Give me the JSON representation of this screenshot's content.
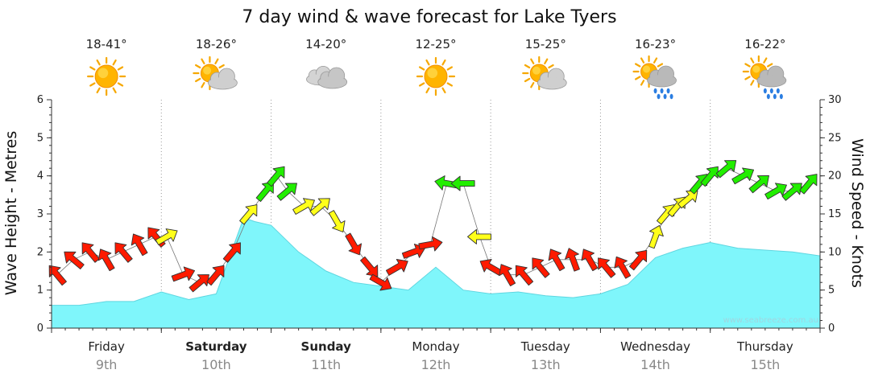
{
  "chart_data": {
    "type": "area",
    "title": "7 day wind & wave forecast for Lake Tyers",
    "ylabel_left": "Wave Height - Metres",
    "ylabel_right": "Wind Speed - Knots",
    "ylim_left": [
      0,
      6
    ],
    "ylim_right": [
      0,
      30
    ],
    "yticks_left": [
      "0",
      "1",
      "2",
      "3",
      "4",
      "5",
      "6"
    ],
    "yticks_right": [
      "0",
      "5",
      "10",
      "15",
      "20",
      "25",
      "30"
    ],
    "grid": "dotted vertical at day boundaries",
    "days": [
      {
        "name": "Friday",
        "date": "9th",
        "temp": "18-41°",
        "icon": "sunny-icon",
        "weekend": false
      },
      {
        "name": "Saturday",
        "date": "10th",
        "temp": "18-26°",
        "icon": "partly-cloudy-icon",
        "weekend": true
      },
      {
        "name": "Sunday",
        "date": "11th",
        "temp": "14-20°",
        "icon": "cloudy-icon",
        "weekend": true
      },
      {
        "name": "Monday",
        "date": "12th",
        "temp": "12-25°",
        "icon": "sunny-icon",
        "weekend": false
      },
      {
        "name": "Tuesday",
        "date": "13th",
        "temp": "15-25°",
        "icon": "partly-cloudy-icon",
        "weekend": false
      },
      {
        "name": "Wednesday",
        "date": "14th",
        "temp": "16-23°",
        "icon": "rain-icon",
        "weekend": false
      },
      {
        "name": "Thursday",
        "date": "15th",
        "temp": "16-22°",
        "icon": "rain-icon",
        "weekend": false
      }
    ],
    "wave_series": {
      "name": "Wave Height",
      "unit": "m",
      "color": "#7ff6fb",
      "x_days": [
        0,
        0.25,
        0.5,
        0.75,
        1.0,
        1.25,
        1.5,
        1.75,
        1.85,
        2.0,
        2.25,
        2.5,
        2.75,
        3.0,
        3.25,
        3.5,
        3.75,
        4.0,
        4.25,
        4.5,
        4.75,
        5.0,
        5.25,
        5.5,
        5.75,
        6.0,
        6.25,
        6.5,
        6.75,
        7.0
      ],
      "values": [
        0.6,
        0.6,
        0.7,
        0.7,
        0.95,
        0.75,
        0.9,
        2.9,
        2.8,
        2.7,
        2.0,
        1.5,
        1.2,
        1.1,
        1.0,
        1.6,
        1.0,
        0.9,
        0.95,
        0.85,
        0.8,
        0.9,
        1.15,
        1.85,
        2.1,
        2.25,
        2.1,
        2.05,
        2.0,
        1.9
      ]
    },
    "wind_series": {
      "name": "Wind Speed",
      "unit": "kt",
      "colors": {
        "light": "#ff1a00",
        "moderate": "#ffff1a",
        "strong": "#22ee00"
      },
      "points": [
        {
          "t": 0.05,
          "kt": 7,
          "dir": 320,
          "band": "light"
        },
        {
          "t": 0.2,
          "kt": 9,
          "dir": 310,
          "band": "light"
        },
        {
          "t": 0.35,
          "kt": 10,
          "dir": 320,
          "band": "light"
        },
        {
          "t": 0.5,
          "kt": 9,
          "dir": 330,
          "band": "light"
        },
        {
          "t": 0.65,
          "kt": 10,
          "dir": 320,
          "band": "light"
        },
        {
          "t": 0.8,
          "kt": 11,
          "dir": 330,
          "band": "light"
        },
        {
          "t": 0.95,
          "kt": 12,
          "dir": 320,
          "band": "light"
        },
        {
          "t": 1.05,
          "kt": 12,
          "dir": 60,
          "band": "moderate"
        },
        {
          "t": 1.2,
          "kt": 7,
          "dir": 70,
          "band": "light"
        },
        {
          "t": 1.35,
          "kt": 6,
          "dir": 50,
          "band": "light"
        },
        {
          "t": 1.5,
          "kt": 7,
          "dir": 40,
          "band": "light"
        },
        {
          "t": 1.65,
          "kt": 10,
          "dir": 40,
          "band": "light"
        },
        {
          "t": 1.8,
          "kt": 15,
          "dir": 40,
          "band": "moderate"
        },
        {
          "t": 1.95,
          "kt": 18,
          "dir": 40,
          "band": "strong"
        },
        {
          "t": 2.05,
          "kt": 20,
          "dir": 40,
          "band": "strong"
        },
        {
          "t": 2.15,
          "kt": 18,
          "dir": 50,
          "band": "strong"
        },
        {
          "t": 2.3,
          "kt": 16,
          "dir": 60,
          "band": "moderate"
        },
        {
          "t": 2.45,
          "kt": 16,
          "dir": 50,
          "band": "moderate"
        },
        {
          "t": 2.6,
          "kt": 14,
          "dir": 150,
          "band": "moderate"
        },
        {
          "t": 2.75,
          "kt": 11,
          "dir": 150,
          "band": "light"
        },
        {
          "t": 2.9,
          "kt": 8,
          "dir": 140,
          "band": "light"
        },
        {
          "t": 3.0,
          "kt": 6,
          "dir": 120,
          "band": "light"
        },
        {
          "t": 3.15,
          "kt": 8,
          "dir": 60,
          "band": "light"
        },
        {
          "t": 3.3,
          "kt": 10,
          "dir": 70,
          "band": "light"
        },
        {
          "t": 3.45,
          "kt": 11,
          "dir": 80,
          "band": "light"
        },
        {
          "t": 3.6,
          "kt": 19,
          "dir": 280,
          "band": "strong"
        },
        {
          "t": 3.75,
          "kt": 19,
          "dir": 270,
          "band": "strong"
        },
        {
          "t": 3.9,
          "kt": 12,
          "dir": 270,
          "band": "moderate"
        },
        {
          "t": 4.0,
          "kt": 8,
          "dir": 300,
          "band": "light"
        },
        {
          "t": 4.15,
          "kt": 7,
          "dir": 330,
          "band": "light"
        },
        {
          "t": 4.3,
          "kt": 7,
          "dir": 320,
          "band": "light"
        },
        {
          "t": 4.45,
          "kt": 8,
          "dir": 320,
          "band": "light"
        },
        {
          "t": 4.6,
          "kt": 9,
          "dir": 330,
          "band": "light"
        },
        {
          "t": 4.75,
          "kt": 9,
          "dir": 340,
          "band": "light"
        },
        {
          "t": 4.9,
          "kt": 9,
          "dir": 330,
          "band": "light"
        },
        {
          "t": 5.05,
          "kt": 8,
          "dir": 320,
          "band": "light"
        },
        {
          "t": 5.2,
          "kt": 8,
          "dir": 330,
          "band": "light"
        },
        {
          "t": 5.35,
          "kt": 9,
          "dir": 40,
          "band": "light"
        },
        {
          "t": 5.5,
          "kt": 12,
          "dir": 20,
          "band": "moderate"
        },
        {
          "t": 5.6,
          "kt": 15,
          "dir": 40,
          "band": "moderate"
        },
        {
          "t": 5.7,
          "kt": 16,
          "dir": 40,
          "band": "moderate"
        },
        {
          "t": 5.8,
          "kt": 17,
          "dir": 50,
          "band": "moderate"
        },
        {
          "t": 5.9,
          "kt": 19,
          "dir": 40,
          "band": "strong"
        },
        {
          "t": 6.0,
          "kt": 20,
          "dir": 40,
          "band": "strong"
        },
        {
          "t": 6.15,
          "kt": 21,
          "dir": 50,
          "band": "strong"
        },
        {
          "t": 6.3,
          "kt": 20,
          "dir": 60,
          "band": "strong"
        },
        {
          "t": 6.45,
          "kt": 19,
          "dir": 50,
          "band": "strong"
        },
        {
          "t": 6.6,
          "kt": 18,
          "dir": 60,
          "band": "strong"
        },
        {
          "t": 6.75,
          "kt": 18,
          "dir": 50,
          "band": "strong"
        },
        {
          "t": 6.9,
          "kt": 19,
          "dir": 40,
          "band": "strong"
        }
      ]
    },
    "watermark": "www.seabreeze.com.au"
  }
}
